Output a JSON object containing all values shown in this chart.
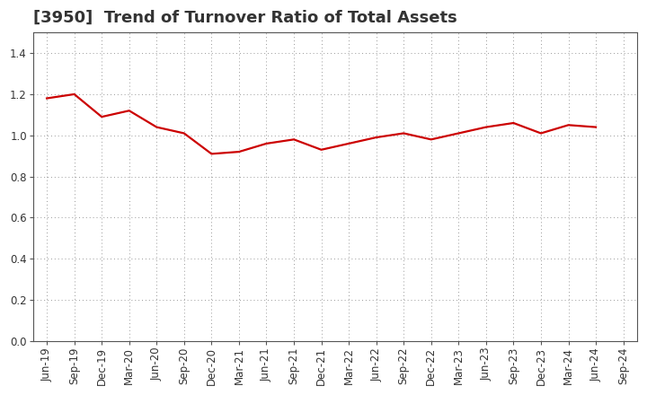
{
  "title": "[3950]  Trend of Turnover Ratio of Total Assets",
  "x_labels": [
    "Jun-19",
    "Sep-19",
    "Dec-19",
    "Mar-20",
    "Jun-20",
    "Sep-20",
    "Dec-20",
    "Mar-21",
    "Jun-21",
    "Sep-21",
    "Dec-21",
    "Mar-22",
    "Jun-22",
    "Sep-22",
    "Dec-22",
    "Mar-23",
    "Jun-23",
    "Sep-23",
    "Dec-23",
    "Mar-24",
    "Jun-24",
    "Sep-24"
  ],
  "y_values": [
    1.18,
    1.2,
    1.09,
    1.12,
    1.04,
    1.01,
    0.91,
    0.92,
    0.96,
    0.98,
    0.93,
    0.96,
    0.99,
    1.01,
    0.98,
    1.01,
    1.04,
    1.06,
    1.01,
    1.05,
    1.04,
    null
  ],
  "line_color": "#cc0000",
  "line_width": 1.6,
  "ylim": [
    0.0,
    1.5
  ],
  "yticks": [
    0.0,
    0.2,
    0.4,
    0.6,
    0.8,
    1.0,
    1.2,
    1.4
  ],
  "background_color": "#ffffff",
  "plot_bg_color": "#ffffff",
  "grid_color": "#999999",
  "title_fontsize": 13,
  "tick_fontsize": 8.5,
  "title_color": "#333333",
  "spine_color": "#555555"
}
